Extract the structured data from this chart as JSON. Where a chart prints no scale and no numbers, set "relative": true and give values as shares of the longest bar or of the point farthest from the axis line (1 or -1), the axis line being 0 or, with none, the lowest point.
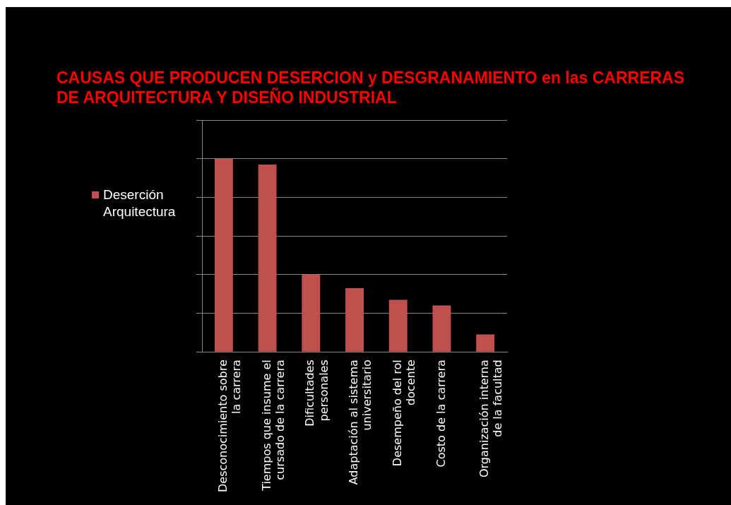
{
  "chart_data": {
    "type": "bar",
    "title": "CAUSAS QUE PRODUCEN DESERCION y DESGRANAMIENTO en las CARRERAS DE ARQUITECTURA Y DISEÑO INDUSTRIAL",
    "categories": [
      "Desconocimiento sobre la carrera",
      "Tiempos que insume el cursado de la carrera",
      "Dificultades personales",
      "Adaptación al sistema universitario",
      "Desempeño del rol docente",
      "Costo de la carrera",
      "Organización interna de la facultad"
    ],
    "series": [
      {
        "name": "Deserción Arquitectura",
        "color": "#c0504d",
        "values": [
          1,
          0.97,
          0.4,
          0.33,
          0.27,
          0.24,
          0.09
        ]
      }
    ],
    "relative": true,
    "grid": "y",
    "legend": "left"
  }
}
